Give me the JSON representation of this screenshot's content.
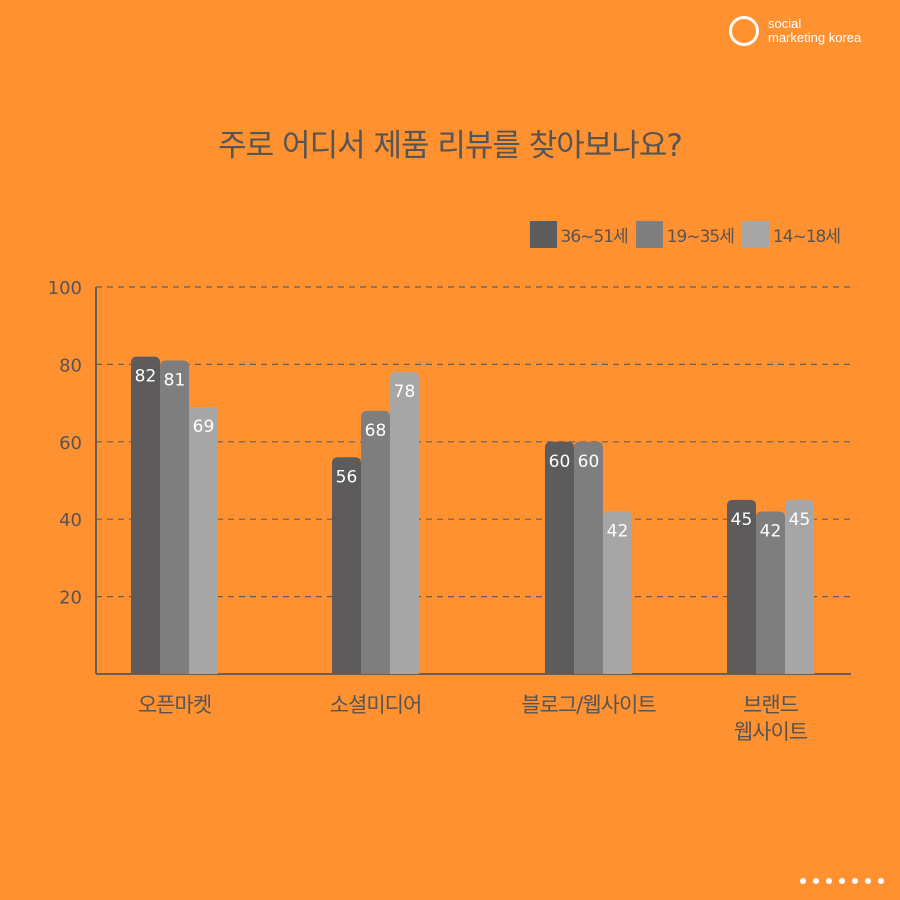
{
  "brand": {
    "line1": "social",
    "line2": "marketing korea"
  },
  "title": "주로 어디서 제품 리뷰를 찾아보나요?",
  "colors": {
    "background": "#ff9130",
    "series": [
      "#5d5b5b",
      "#7e7e7e",
      "#a7a6a6"
    ],
    "text": "#555555",
    "label": "#ffffff"
  },
  "chart_data": {
    "type": "bar",
    "title": "주로 어디서 제품 리뷰를 찾아보나요?",
    "categories": [
      [
        "오픈마켓"
      ],
      [
        "소셜미디어"
      ],
      [
        "블로그/웹사이트"
      ],
      [
        "브랜드",
        "웹사이트"
      ]
    ],
    "series": [
      {
        "name": "36~51세",
        "values": [
          82,
          56,
          60,
          45
        ]
      },
      {
        "name": "19~35세",
        "values": [
          81,
          68,
          60,
          42
        ]
      },
      {
        "name": "14~18세",
        "values": [
          69,
          78,
          42,
          45
        ]
      }
    ],
    "yticks": [
      20,
      40,
      60,
      80,
      100
    ],
    "ylim": [
      0,
      100
    ],
    "grid": true,
    "legend_position": "top-right",
    "data_labels": true
  },
  "pager": {
    "dot_count": 7
  }
}
